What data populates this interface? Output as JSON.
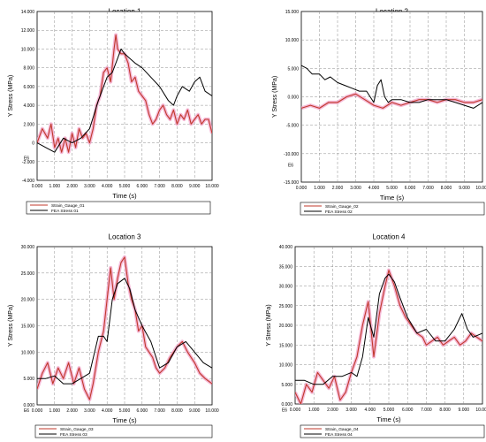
{
  "colors": {
    "strain": "#c0392b",
    "fea": "#000000",
    "band": "#f2a6cc",
    "grid": "#8c8c8c"
  },
  "chart_data": [
    {
      "type": "line",
      "title": "Location 1",
      "xlabel": "Time (s)",
      "ylabel": "Y Stress (MPa)",
      "ylim": [
        -4,
        14
      ],
      "yticks": [
        -4,
        -2,
        0,
        2,
        4,
        6,
        8,
        10,
        12,
        14
      ],
      "ytick_labels": [
        "-4.000",
        "-2.000",
        "0",
        "2.000",
        "4.000",
        "6.000",
        "8.000",
        "10.000",
        "12.000",
        "14.000"
      ],
      "xlim": [
        0,
        10
      ],
      "xtick_labels": [
        "0.000",
        "1.000",
        "2.000",
        "3.000",
        "4.000",
        "5.000",
        "6.000",
        "7.000",
        "8.000",
        "9.000",
        "10.000"
      ],
      "scale_label": "E6",
      "scale_value": -1.6,
      "grid": true,
      "legend_position": "bottom",
      "series": [
        {
          "name": "Strain_Gauge_01",
          "x": [
            0,
            0.3,
            0.6,
            0.8,
            1.0,
            1.2,
            1.4,
            1.6,
            1.8,
            2.0,
            2.2,
            2.4,
            2.6,
            2.8,
            3.0,
            3.2,
            3.4,
            3.6,
            3.8,
            4.0,
            4.2,
            4.4,
            4.5,
            4.6,
            4.8,
            5.0,
            5.2,
            5.4,
            5.6,
            5.8,
            6.0,
            6.2,
            6.4,
            6.6,
            6.8,
            7.0,
            7.2,
            7.4,
            7.6,
            7.8,
            8.0,
            8.2,
            8.4,
            8.6,
            8.8,
            9.0,
            9.2,
            9.4,
            9.6,
            9.8,
            10.0
          ],
          "y": [
            0,
            1.5,
            0.5,
            2.0,
            -0.5,
            0.5,
            -1.0,
            0.5,
            -1.0,
            1.0,
            -0.5,
            1.5,
            0.5,
            1.0,
            0.0,
            1.5,
            4.0,
            5.0,
            7.5,
            8.0,
            6.5,
            10.0,
            11.5,
            10.0,
            9.5,
            9.5,
            8.5,
            6.5,
            7.0,
            5.5,
            5.0,
            4.5,
            3.0,
            2.0,
            2.5,
            3.5,
            4.0,
            3.0,
            2.5,
            3.5,
            2.0,
            3.0,
            2.5,
            3.5,
            2.0,
            2.5,
            3.0,
            2.0,
            2.5,
            2.5,
            1.0
          ]
        },
        {
          "name": "FEA Stress 01",
          "x": [
            0,
            0.5,
            1.0,
            1.5,
            2.0,
            2.5,
            3.0,
            3.5,
            4.0,
            4.3,
            4.6,
            4.8,
            5.0,
            5.3,
            5.6,
            6.0,
            6.5,
            7.0,
            7.5,
            7.8,
            8.0,
            8.3,
            8.7,
            9.0,
            9.3,
            9.6,
            10.0
          ],
          "y": [
            0,
            -0.5,
            -1.0,
            0.5,
            0.0,
            0.5,
            1.5,
            4.5,
            7.0,
            7.5,
            9.0,
            10.0,
            9.5,
            9.0,
            8.5,
            8.0,
            7.0,
            6.0,
            4.5,
            4.0,
            5.0,
            6.0,
            5.5,
            6.5,
            7.0,
            5.5,
            5.0
          ]
        }
      ]
    },
    {
      "type": "line",
      "title": "Location 2",
      "xlabel": "Time (s)",
      "ylabel": "Y Stress (MPa)",
      "ylim": [
        -15,
        15
      ],
      "yticks": [
        -15,
        -10,
        -5,
        0,
        5,
        10,
        15
      ],
      "ytick_labels": [
        "-15.000",
        "-10.000",
        "-5.000",
        "0.000",
        "5.000",
        "10.000",
        "15.000"
      ],
      "xlim": [
        0,
        10
      ],
      "xtick_labels": [
        "0.000",
        "1.000",
        "2.000",
        "3.000",
        "4.000",
        "5.000",
        "6.000",
        "7.000",
        "8.000",
        "9.000",
        "10.000"
      ],
      "scale_label": "E6",
      "scale_value": -12,
      "grid": true,
      "legend_position": "bottom",
      "series": [
        {
          "name": "Strain_Gauge_02",
          "x": [
            0,
            0.5,
            1.0,
            1.5,
            2.0,
            2.5,
            3.0,
            3.5,
            4.0,
            4.5,
            5.0,
            5.5,
            6.0,
            6.5,
            7.0,
            7.5,
            8.0,
            8.5,
            9.0,
            9.5,
            10.0
          ],
          "y": [
            -2.0,
            -1.5,
            -2.0,
            -1.0,
            -1.0,
            0.0,
            0.5,
            -0.5,
            -1.5,
            -2.0,
            -1.0,
            -1.5,
            -1.0,
            -0.5,
            -0.5,
            -1.0,
            -0.5,
            -0.5,
            -1.0,
            -1.0,
            -0.5
          ]
        },
        {
          "name": "FEA Stress 02",
          "x": [
            0,
            0.3,
            0.6,
            1.0,
            1.3,
            1.6,
            2.0,
            2.4,
            2.8,
            3.2,
            3.6,
            4.0,
            4.2,
            4.4,
            4.6,
            4.8,
            5.0,
            5.5,
            6.0,
            6.5,
            7.0,
            7.5,
            8.0,
            8.5,
            9.0,
            9.5,
            10.0
          ],
          "y": [
            5.5,
            5.0,
            4.0,
            4.0,
            3.0,
            3.5,
            2.5,
            2.0,
            1.5,
            1.0,
            1.0,
            -1.0,
            2.0,
            3.0,
            0.0,
            -1.0,
            -0.5,
            -0.5,
            -1.0,
            -1.0,
            -0.5,
            -0.5,
            -0.5,
            -1.0,
            -1.5,
            -2.0,
            -1.0
          ]
        }
      ]
    },
    {
      "type": "line",
      "title": "Location 3",
      "xlabel": "Time (s)",
      "ylabel": "Y Stress (MPa)",
      "ylim": [
        0,
        30
      ],
      "yticks": [
        0,
        5,
        10,
        15,
        20,
        25,
        30
      ],
      "ytick_labels": [
        "0.000",
        "5.000",
        "10.000",
        "15.000",
        "20.000",
        "25.000",
        "30.000"
      ],
      "xlim": [
        0,
        10
      ],
      "xtick_labels": [
        "0.000",
        "1.000",
        "2.000",
        "3.000",
        "4.000",
        "5.000",
        "6.000",
        "7.000",
        "8.000",
        "9.000",
        "10.000"
      ],
      "scale_label": "E6",
      "scale_value": -1,
      "grid": true,
      "legend_position": "bottom",
      "series": [
        {
          "name": "Strain_Gauge_03",
          "x": [
            0,
            0.3,
            0.6,
            0.9,
            1.2,
            1.5,
            1.8,
            2.1,
            2.4,
            2.7,
            3.0,
            3.2,
            3.5,
            3.8,
            4.0,
            4.2,
            4.4,
            4.6,
            4.8,
            5.0,
            5.2,
            5.4,
            5.6,
            5.8,
            6.0,
            6.2,
            6.4,
            6.6,
            6.8,
            7.0,
            7.3,
            7.6,
            8.0,
            8.3,
            8.6,
            9.0,
            9.3,
            9.6,
            10.0
          ],
          "y": [
            3,
            6,
            8,
            4,
            7,
            5,
            8,
            4,
            7,
            3,
            1,
            4,
            10,
            14,
            20,
            26,
            20,
            24,
            27,
            28,
            23,
            20,
            18,
            14,
            15,
            11,
            10,
            9,
            7,
            6,
            7,
            9,
            11,
            12,
            10,
            8,
            6,
            5,
            4
          ]
        },
        {
          "name": "FEA Stress 03",
          "x": [
            0,
            0.5,
            1.0,
            1.5,
            2.0,
            2.5,
            3.0,
            3.5,
            3.8,
            4.0,
            4.3,
            4.6,
            5.0,
            5.3,
            5.6,
            6.0,
            6.5,
            7.0,
            7.5,
            8.0,
            8.5,
            9.0,
            9.5,
            10.0
          ],
          "y": [
            5,
            5,
            5.5,
            4,
            4,
            5,
            6,
            13,
            13,
            12,
            20,
            23,
            24,
            22,
            18,
            15,
            12,
            7,
            8,
            11,
            12,
            10,
            8,
            7
          ]
        }
      ]
    },
    {
      "type": "line",
      "title": "Location 4",
      "xlabel": "Time (s)",
      "ylabel": "Y Stress (MPa)",
      "ylim": [
        0,
        40
      ],
      "yticks": [
        0,
        5,
        10,
        15,
        20,
        25,
        30,
        35,
        40
      ],
      "ytick_labels": [
        "0.000",
        "5.000",
        "10.000",
        "15.000",
        "20.000",
        "25.000",
        "30.000",
        "35.000",
        "40.000"
      ],
      "xlim": [
        0,
        10
      ],
      "xtick_labels": [
        "0.000",
        "1.000",
        "2.000",
        "3.000",
        "4.000",
        "5.000",
        "6.000",
        "7.000",
        "8.000",
        "9.000",
        "10.000"
      ],
      "scale_label": "E6",
      "scale_value": -1.5,
      "grid": true,
      "legend_position": "bottom",
      "series": [
        {
          "name": "Strain_Gauge_04",
          "x": [
            0,
            0.3,
            0.6,
            0.9,
            1.2,
            1.5,
            1.8,
            2.1,
            2.4,
            2.7,
            3.0,
            3.3,
            3.6,
            3.9,
            4.2,
            4.5,
            4.8,
            5.0,
            5.3,
            5.6,
            5.9,
            6.2,
            6.5,
            6.8,
            7.0,
            7.3,
            7.6,
            7.9,
            8.2,
            8.5,
            8.8,
            9.1,
            9.4,
            9.7,
            10.0
          ],
          "y": [
            3,
            0,
            5,
            3,
            8,
            6,
            4,
            7,
            1,
            3,
            8,
            12,
            20,
            26,
            12,
            23,
            30,
            34,
            30,
            25,
            22,
            20,
            18,
            17,
            15,
            16,
            17,
            15,
            16,
            17,
            15,
            16,
            18,
            17,
            16
          ]
        },
        {
          "name": "FEA Stress 04",
          "x": [
            0,
            0.5,
            1.0,
            1.5,
            2.0,
            2.5,
            3.0,
            3.3,
            3.6,
            3.9,
            4.2,
            4.5,
            4.8,
            5.0,
            5.3,
            5.6,
            6.0,
            6.5,
            7.0,
            7.5,
            8.0,
            8.5,
            8.9,
            9.2,
            9.5,
            10.0
          ],
          "y": [
            6,
            6,
            5,
            5,
            7,
            7,
            8,
            7,
            12,
            22,
            17,
            28,
            32,
            33,
            31,
            27,
            22,
            18,
            19,
            16,
            16,
            19,
            23,
            19,
            17,
            18
          ]
        }
      ]
    }
  ]
}
